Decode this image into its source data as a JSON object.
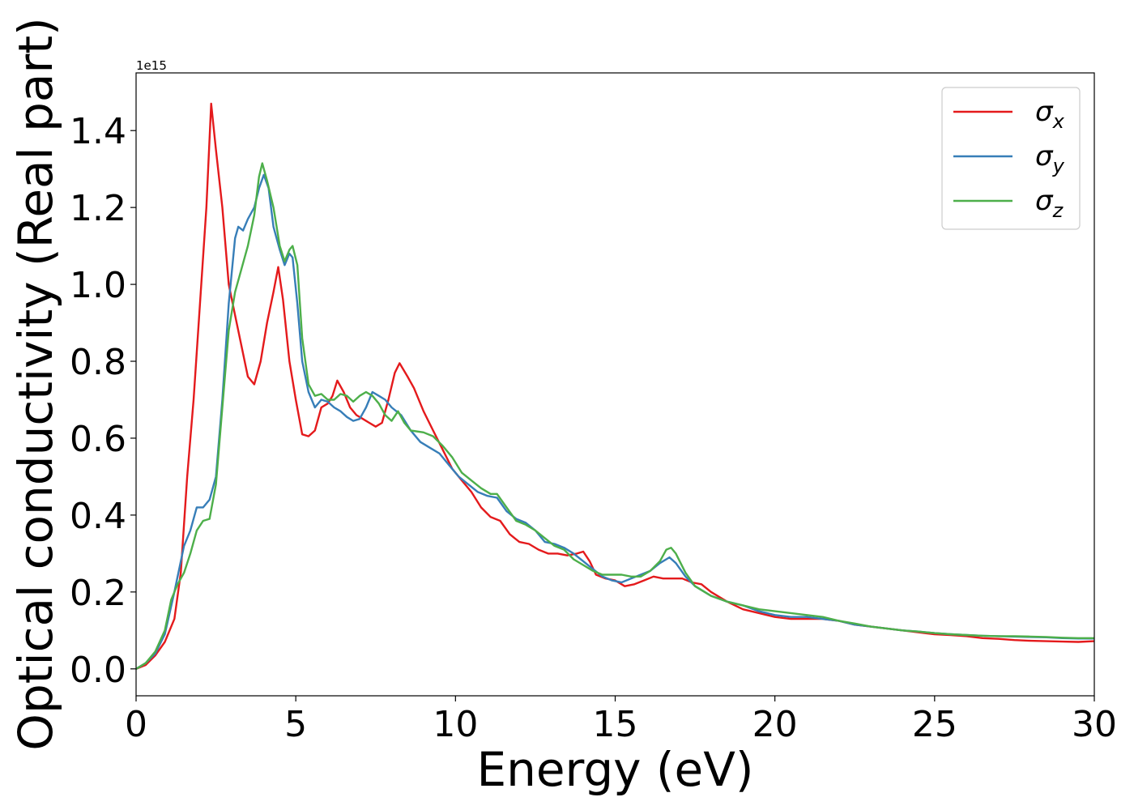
{
  "chart_data": {
    "type": "line",
    "title": "",
    "xlabel": "Energy (eV)",
    "ylabel": "Optical conductivity (Real part)",
    "offset_text": "1e15",
    "xlim": [
      0,
      30
    ],
    "ylim": [
      -0.07,
      1.55
    ],
    "xticks": [
      0,
      5,
      10,
      15,
      20,
      25,
      30
    ],
    "xtick_labels": [
      "0",
      "5",
      "10",
      "15",
      "20",
      "25",
      "30"
    ],
    "yticks": [
      0.0,
      0.2,
      0.4,
      0.6,
      0.8,
      1.0,
      1.2,
      1.4
    ],
    "ytick_labels": [
      "0.0",
      "0.2",
      "0.4",
      "0.6",
      "0.8",
      "1.0",
      "1.2",
      "1.4"
    ],
    "grid": false,
    "legend_position": "top-right",
    "series": [
      {
        "legend_base": "σ",
        "legend_sub": "x",
        "color": "#e41a1c",
        "points": [
          [
            0,
            0
          ],
          [
            0.3,
            0.01
          ],
          [
            0.6,
            0.035
          ],
          [
            0.9,
            0.07
          ],
          [
            1.2,
            0.13
          ],
          [
            1.4,
            0.25
          ],
          [
            1.6,
            0.5
          ],
          [
            1.8,
            0.7
          ],
          [
            2.0,
            0.95
          ],
          [
            2.2,
            1.2
          ],
          [
            2.35,
            1.47
          ],
          [
            2.5,
            1.35
          ],
          [
            2.7,
            1.2
          ],
          [
            2.9,
            1.0
          ],
          [
            3.1,
            0.92
          ],
          [
            3.3,
            0.84
          ],
          [
            3.5,
            0.76
          ],
          [
            3.7,
            0.74
          ],
          [
            3.9,
            0.8
          ],
          [
            4.1,
            0.9
          ],
          [
            4.3,
            0.98
          ],
          [
            4.45,
            1.045
          ],
          [
            4.6,
            0.96
          ],
          [
            4.8,
            0.8
          ],
          [
            5.0,
            0.7
          ],
          [
            5.2,
            0.61
          ],
          [
            5.4,
            0.605
          ],
          [
            5.6,
            0.62
          ],
          [
            5.8,
            0.68
          ],
          [
            6.0,
            0.69
          ],
          [
            6.15,
            0.71
          ],
          [
            6.3,
            0.75
          ],
          [
            6.5,
            0.72
          ],
          [
            6.7,
            0.68
          ],
          [
            6.9,
            0.66
          ],
          [
            7.1,
            0.65
          ],
          [
            7.3,
            0.64
          ],
          [
            7.5,
            0.63
          ],
          [
            7.7,
            0.64
          ],
          [
            7.9,
            0.7
          ],
          [
            8.1,
            0.77
          ],
          [
            8.25,
            0.795
          ],
          [
            8.5,
            0.76
          ],
          [
            8.7,
            0.73
          ],
          [
            9.0,
            0.67
          ],
          [
            9.3,
            0.62
          ],
          [
            9.6,
            0.57
          ],
          [
            9.9,
            0.52
          ],
          [
            10.2,
            0.49
          ],
          [
            10.5,
            0.46
          ],
          [
            10.8,
            0.42
          ],
          [
            11.1,
            0.395
          ],
          [
            11.4,
            0.385
          ],
          [
            11.7,
            0.35
          ],
          [
            12.0,
            0.33
          ],
          [
            12.3,
            0.325
          ],
          [
            12.6,
            0.31
          ],
          [
            12.9,
            0.3
          ],
          [
            13.2,
            0.3
          ],
          [
            13.5,
            0.295
          ],
          [
            13.8,
            0.3
          ],
          [
            14.0,
            0.305
          ],
          [
            14.2,
            0.28
          ],
          [
            14.4,
            0.245
          ],
          [
            14.7,
            0.235
          ],
          [
            15.0,
            0.23
          ],
          [
            15.3,
            0.215
          ],
          [
            15.6,
            0.22
          ],
          [
            15.9,
            0.23
          ],
          [
            16.2,
            0.24
          ],
          [
            16.5,
            0.235
          ],
          [
            16.8,
            0.235
          ],
          [
            17.1,
            0.235
          ],
          [
            17.4,
            0.225
          ],
          [
            17.7,
            0.22
          ],
          [
            18.0,
            0.2
          ],
          [
            18.5,
            0.175
          ],
          [
            19.0,
            0.155
          ],
          [
            19.5,
            0.145
          ],
          [
            20.0,
            0.135
          ],
          [
            20.5,
            0.13
          ],
          [
            21.0,
            0.13
          ],
          [
            21.5,
            0.13
          ],
          [
            22.0,
            0.125
          ],
          [
            22.5,
            0.115
          ],
          [
            23.0,
            0.11
          ],
          [
            23.5,
            0.105
          ],
          [
            24.0,
            0.1
          ],
          [
            24.5,
            0.095
          ],
          [
            25.0,
            0.09
          ],
          [
            25.5,
            0.088
          ],
          [
            26.0,
            0.085
          ],
          [
            26.5,
            0.08
          ],
          [
            27.0,
            0.078
          ],
          [
            27.5,
            0.075
          ],
          [
            28.0,
            0.073
          ],
          [
            28.5,
            0.072
          ],
          [
            29.0,
            0.071
          ],
          [
            29.5,
            0.07
          ],
          [
            30.0,
            0.072
          ]
        ]
      },
      {
        "legend_base": "σ",
        "legend_sub": "y",
        "color": "#377eb8",
        "points": [
          [
            0,
            0
          ],
          [
            0.3,
            0.015
          ],
          [
            0.6,
            0.04
          ],
          [
            0.9,
            0.09
          ],
          [
            1.2,
            0.2
          ],
          [
            1.5,
            0.32
          ],
          [
            1.7,
            0.36
          ],
          [
            1.9,
            0.42
          ],
          [
            2.1,
            0.42
          ],
          [
            2.3,
            0.44
          ],
          [
            2.5,
            0.5
          ],
          [
            2.7,
            0.7
          ],
          [
            2.9,
            0.95
          ],
          [
            3.1,
            1.12
          ],
          [
            3.2,
            1.15
          ],
          [
            3.35,
            1.14
          ],
          [
            3.5,
            1.17
          ],
          [
            3.7,
            1.2
          ],
          [
            3.85,
            1.25
          ],
          [
            4.0,
            1.285
          ],
          [
            4.15,
            1.25
          ],
          [
            4.3,
            1.15
          ],
          [
            4.5,
            1.09
          ],
          [
            4.65,
            1.05
          ],
          [
            4.8,
            1.08
          ],
          [
            4.9,
            1.07
          ],
          [
            5.05,
            0.95
          ],
          [
            5.2,
            0.8
          ],
          [
            5.4,
            0.72
          ],
          [
            5.6,
            0.68
          ],
          [
            5.8,
            0.7
          ],
          [
            6.0,
            0.695
          ],
          [
            6.2,
            0.68
          ],
          [
            6.4,
            0.67
          ],
          [
            6.6,
            0.655
          ],
          [
            6.8,
            0.645
          ],
          [
            7.0,
            0.65
          ],
          [
            7.2,
            0.68
          ],
          [
            7.4,
            0.72
          ],
          [
            7.6,
            0.71
          ],
          [
            7.8,
            0.7
          ],
          [
            8.0,
            0.68
          ],
          [
            8.3,
            0.66
          ],
          [
            8.6,
            0.62
          ],
          [
            8.9,
            0.59
          ],
          [
            9.2,
            0.575
          ],
          [
            9.5,
            0.56
          ],
          [
            9.8,
            0.53
          ],
          [
            10.1,
            0.5
          ],
          [
            10.4,
            0.48
          ],
          [
            10.7,
            0.46
          ],
          [
            11.0,
            0.45
          ],
          [
            11.3,
            0.445
          ],
          [
            11.6,
            0.41
          ],
          [
            11.9,
            0.39
          ],
          [
            12.2,
            0.38
          ],
          [
            12.5,
            0.36
          ],
          [
            12.8,
            0.33
          ],
          [
            13.1,
            0.325
          ],
          [
            13.4,
            0.315
          ],
          [
            13.7,
            0.3
          ],
          [
            14.0,
            0.28
          ],
          [
            14.3,
            0.26
          ],
          [
            14.6,
            0.24
          ],
          [
            14.9,
            0.23
          ],
          [
            15.2,
            0.225
          ],
          [
            15.5,
            0.235
          ],
          [
            15.8,
            0.245
          ],
          [
            16.1,
            0.255
          ],
          [
            16.4,
            0.275
          ],
          [
            16.7,
            0.29
          ],
          [
            16.9,
            0.275
          ],
          [
            17.2,
            0.24
          ],
          [
            17.5,
            0.215
          ],
          [
            17.8,
            0.2
          ],
          [
            18.0,
            0.19
          ],
          [
            18.5,
            0.175
          ],
          [
            19.0,
            0.165
          ],
          [
            19.5,
            0.15
          ],
          [
            20.0,
            0.14
          ],
          [
            20.5,
            0.135
          ],
          [
            21.0,
            0.135
          ],
          [
            21.5,
            0.13
          ],
          [
            22.0,
            0.125
          ],
          [
            22.5,
            0.115
          ],
          [
            23.0,
            0.11
          ],
          [
            23.5,
            0.105
          ],
          [
            24.0,
            0.1
          ],
          [
            24.5,
            0.097
          ],
          [
            25.0,
            0.093
          ],
          [
            25.5,
            0.09
          ],
          [
            26.0,
            0.088
          ],
          [
            26.5,
            0.086
          ],
          [
            27.0,
            0.085
          ],
          [
            27.5,
            0.084
          ],
          [
            28.0,
            0.083
          ],
          [
            28.5,
            0.082
          ],
          [
            29.0,
            0.08
          ],
          [
            29.5,
            0.079
          ],
          [
            30.0,
            0.079
          ]
        ]
      },
      {
        "legend_base": "σ",
        "legend_sub": "z",
        "color": "#4daf4a",
        "points": [
          [
            0,
            0
          ],
          [
            0.3,
            0.015
          ],
          [
            0.6,
            0.045
          ],
          [
            0.9,
            0.1
          ],
          [
            1.1,
            0.18
          ],
          [
            1.3,
            0.22
          ],
          [
            1.5,
            0.25
          ],
          [
            1.7,
            0.3
          ],
          [
            1.9,
            0.36
          ],
          [
            2.1,
            0.385
          ],
          [
            2.3,
            0.39
          ],
          [
            2.5,
            0.48
          ],
          [
            2.7,
            0.68
          ],
          [
            2.9,
            0.88
          ],
          [
            3.1,
            0.98
          ],
          [
            3.3,
            1.04
          ],
          [
            3.5,
            1.1
          ],
          [
            3.7,
            1.18
          ],
          [
            3.85,
            1.28
          ],
          [
            3.95,
            1.315
          ],
          [
            4.1,
            1.27
          ],
          [
            4.3,
            1.2
          ],
          [
            4.5,
            1.1
          ],
          [
            4.65,
            1.06
          ],
          [
            4.8,
            1.09
          ],
          [
            4.9,
            1.1
          ],
          [
            5.05,
            1.05
          ],
          [
            5.2,
            0.86
          ],
          [
            5.4,
            0.74
          ],
          [
            5.6,
            0.71
          ],
          [
            5.8,
            0.715
          ],
          [
            6.0,
            0.7
          ],
          [
            6.2,
            0.7
          ],
          [
            6.4,
            0.715
          ],
          [
            6.6,
            0.71
          ],
          [
            6.8,
            0.695
          ],
          [
            7.0,
            0.71
          ],
          [
            7.2,
            0.72
          ],
          [
            7.4,
            0.71
          ],
          [
            7.6,
            0.69
          ],
          [
            7.8,
            0.66
          ],
          [
            8.0,
            0.645
          ],
          [
            8.2,
            0.67
          ],
          [
            8.4,
            0.64
          ],
          [
            8.6,
            0.62
          ],
          [
            9.0,
            0.615
          ],
          [
            9.3,
            0.605
          ],
          [
            9.6,
            0.58
          ],
          [
            9.9,
            0.55
          ],
          [
            10.2,
            0.51
          ],
          [
            10.5,
            0.49
          ],
          [
            10.8,
            0.47
          ],
          [
            11.1,
            0.455
          ],
          [
            11.3,
            0.455
          ],
          [
            11.6,
            0.42
          ],
          [
            11.9,
            0.385
          ],
          [
            12.2,
            0.375
          ],
          [
            12.5,
            0.36
          ],
          [
            12.8,
            0.34
          ],
          [
            13.1,
            0.32
          ],
          [
            13.4,
            0.31
          ],
          [
            13.7,
            0.285
          ],
          [
            14.0,
            0.27
          ],
          [
            14.3,
            0.255
          ],
          [
            14.6,
            0.245
          ],
          [
            14.9,
            0.245
          ],
          [
            15.2,
            0.245
          ],
          [
            15.5,
            0.24
          ],
          [
            15.8,
            0.24
          ],
          [
            16.1,
            0.255
          ],
          [
            16.4,
            0.28
          ],
          [
            16.6,
            0.31
          ],
          [
            16.75,
            0.315
          ],
          [
            16.9,
            0.3
          ],
          [
            17.2,
            0.25
          ],
          [
            17.5,
            0.215
          ],
          [
            17.8,
            0.2
          ],
          [
            18.0,
            0.19
          ],
          [
            18.5,
            0.175
          ],
          [
            19.0,
            0.165
          ],
          [
            19.5,
            0.155
          ],
          [
            20.0,
            0.15
          ],
          [
            20.5,
            0.145
          ],
          [
            21.0,
            0.14
          ],
          [
            21.5,
            0.135
          ],
          [
            22.0,
            0.125
          ],
          [
            22.5,
            0.118
          ],
          [
            23.0,
            0.11
          ],
          [
            23.5,
            0.105
          ],
          [
            24.0,
            0.1
          ],
          [
            24.5,
            0.097
          ],
          [
            25.0,
            0.093
          ],
          [
            25.5,
            0.09
          ],
          [
            26.0,
            0.088
          ],
          [
            26.5,
            0.086
          ],
          [
            27.0,
            0.085
          ],
          [
            27.5,
            0.085
          ],
          [
            28.0,
            0.084
          ],
          [
            28.5,
            0.083
          ],
          [
            29.0,
            0.081
          ],
          [
            29.5,
            0.08
          ],
          [
            30.0,
            0.08
          ]
        ]
      }
    ]
  }
}
